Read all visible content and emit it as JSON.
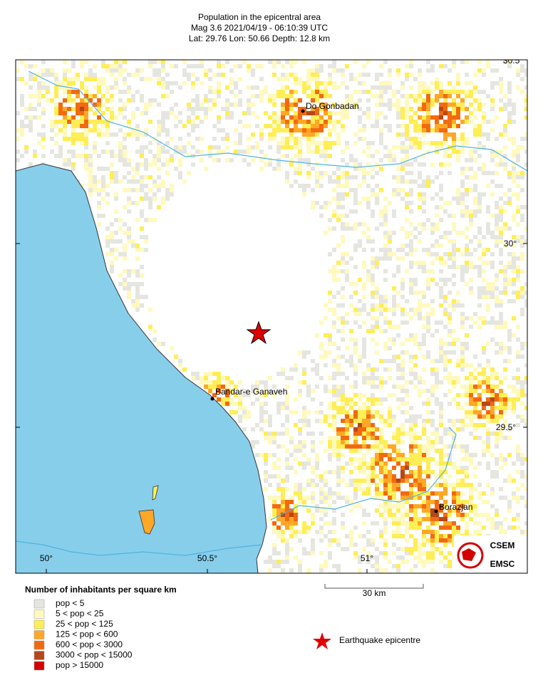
{
  "header": {
    "title": "Population in the epicentral area",
    "line2": "Mag 3.6  2021/04/19 - 06:10:39 UTC",
    "line3": "Lat: 29.76   Lon: 50.66    Depth:  12.8 km"
  },
  "map": {
    "lon_labels": [
      "50°",
      "50.5°",
      "51°"
    ],
    "lat_labels": [
      "30.5°",
      "30°",
      "29.5°"
    ],
    "cities": [
      "Do Gonbadan",
      "Bandar-e Ganaveh",
      "Borazjan"
    ]
  },
  "legend": {
    "title": "Number of inhabitants per square km",
    "items": [
      {
        "label": "pop < 5",
        "color": "#e6e6e1"
      },
      {
        "label": "5 < pop < 25",
        "color": "#fff9be"
      },
      {
        "label": "25 < pop < 125",
        "color": "#ffee55"
      },
      {
        "label": "125 < pop < 600",
        "color": "#ffa726"
      },
      {
        "label": "600 < pop < 3000",
        "color": "#f26a10"
      },
      {
        "label": "3000 < pop < 15000",
        "color": "#b5481a"
      },
      {
        "label": "pop > 15000",
        "color": "#d40000"
      }
    ]
  },
  "scale": "30 km",
  "epicentre": "Earthquake epicentre",
  "logo": {
    "top": "CSEM",
    "bottom": "EMSC"
  }
}
